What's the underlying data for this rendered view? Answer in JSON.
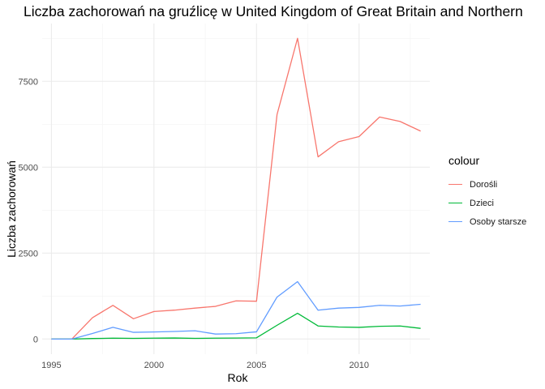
{
  "chart_data": {
    "type": "line",
    "title": "Liczba zachorowań na gruźlicę w United Kingdom of Great Britain and Northern",
    "xlabel": "Rok",
    "ylabel": "Liczba zachorowań",
    "legend_title": "colour",
    "legend_position": "right",
    "grid": true,
    "xlim": [
      1994.55,
      2013.45
    ],
    "ylim": [
      -440,
      9180
    ],
    "x_ticks": [
      1995,
      2000,
      2005,
      2010
    ],
    "y_ticks": [
      0,
      2500,
      5000,
      7500
    ],
    "x_tick_labels": [
      "1995",
      "2000",
      "2005",
      "2010"
    ],
    "y_tick_labels": [
      "0",
      "2500",
      "5000",
      "7500"
    ],
    "x": [
      1995,
      1996,
      1997,
      1998,
      1999,
      2000,
      2001,
      2002,
      2003,
      2004,
      2005,
      2006,
      2007,
      2008,
      2009,
      2010,
      2011,
      2012,
      2013
    ],
    "series": [
      {
        "name": "Dorośli",
        "color": "#F8766D",
        "values": [
          0,
          0,
          620,
          980,
          590,
          800,
          840,
          900,
          950,
          1110,
          1100,
          6530,
          8750,
          5300,
          5740,
          5890,
          6460,
          6330,
          6050
        ]
      },
      {
        "name": "Dzieci",
        "color": "#00BA38",
        "values": [
          0,
          0,
          15,
          25,
          20,
          25,
          30,
          20,
          25,
          28,
          35,
          400,
          750,
          380,
          350,
          340,
          370,
          380,
          310
        ]
      },
      {
        "name": "Osoby starsze",
        "color": "#619CFF",
        "values": [
          0,
          0,
          160,
          340,
          195,
          205,
          220,
          240,
          145,
          155,
          210,
          1220,
          1670,
          840,
          900,
          920,
          980,
          960,
          1010
        ]
      }
    ]
  }
}
